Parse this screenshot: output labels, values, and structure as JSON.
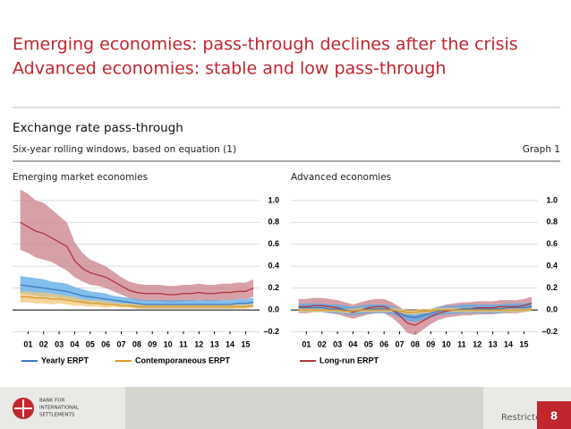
{
  "slide": {
    "title_lines": [
      "Emerging economies: pass-through declines after the crisis",
      "Advanced economies: stable and low pass-through"
    ]
  },
  "figure": {
    "title": "Exchange rate pass-through",
    "subtitle": "Six-year rolling windows, based on equation (1)",
    "label": "Graph 1"
  },
  "footer": {
    "logo_lines": [
      "BANK FOR",
      "INTERNATIONAL",
      "SETTLEMENTS"
    ],
    "classification": "Restricted",
    "page": "8"
  },
  "chart_data": [
    {
      "type": "line",
      "title": "Emerging market economies",
      "x": [
        0.5,
        1,
        1.5,
        2,
        2.5,
        3,
        3.5,
        4,
        4.5,
        5,
        5.5,
        6,
        6.5,
        7,
        7.5,
        8,
        8.5,
        9,
        9.5,
        10,
        10.5,
        11,
        11.5,
        12,
        12.5,
        13,
        13.5,
        14,
        14.5,
        15,
        15.5
      ],
      "xlim": [
        0,
        15.9
      ],
      "xticks": [
        {
          "value": 1,
          "label": "01"
        },
        {
          "value": 2,
          "label": "02"
        },
        {
          "value": 3,
          "label": "03"
        },
        {
          "value": 4,
          "label": "04"
        },
        {
          "value": 5,
          "label": "05"
        },
        {
          "value": 6,
          "label": "06"
        },
        {
          "value": 7,
          "label": "07"
        },
        {
          "value": 8,
          "label": "08"
        },
        {
          "value": 9,
          "label": "09"
        },
        {
          "value": 10,
          "label": "10"
        },
        {
          "value": 11,
          "label": "11"
        },
        {
          "value": 12,
          "label": "12"
        },
        {
          "value": 13,
          "label": "13"
        },
        {
          "value": 14,
          "label": "14"
        },
        {
          "value": 15,
          "label": "15"
        }
      ],
      "ylim": [
        -0.22,
        1.13
      ],
      "yticks": [
        {
          "value": -0.2,
          "label": "–0.2"
        },
        {
          "value": 0,
          "label": "0.0"
        },
        {
          "value": 0.2,
          "label": "0.2"
        },
        {
          "value": 0.4,
          "label": "0.4"
        },
        {
          "value": 0.6,
          "label": "0.6"
        },
        {
          "value": 0.8,
          "label": "0.8"
        },
        {
          "value": 1,
          "label": "1.0"
        }
      ],
      "grid": true,
      "series": [
        {
          "color": "#b5323f",
          "band_color": "#c98089",
          "values": [
            0.8,
            0.76,
            0.72,
            0.7,
            0.66,
            0.62,
            0.58,
            0.45,
            0.38,
            0.34,
            0.32,
            0.3,
            0.26,
            0.22,
            0.18,
            0.16,
            0.15,
            0.15,
            0.15,
            0.14,
            0.14,
            0.15,
            0.15,
            0.16,
            0.15,
            0.15,
            0.16,
            0.16,
            0.17,
            0.17,
            0.2
          ],
          "upper": [
            1.1,
            1.06,
            1.0,
            0.98,
            0.92,
            0.86,
            0.8,
            0.62,
            0.52,
            0.46,
            0.43,
            0.4,
            0.35,
            0.3,
            0.26,
            0.24,
            0.23,
            0.23,
            0.23,
            0.22,
            0.22,
            0.23,
            0.23,
            0.24,
            0.23,
            0.23,
            0.24,
            0.24,
            0.25,
            0.25,
            0.28
          ],
          "lower": [
            0.55,
            0.52,
            0.48,
            0.46,
            0.44,
            0.4,
            0.36,
            0.3,
            0.26,
            0.23,
            0.22,
            0.2,
            0.17,
            0.14,
            0.11,
            0.09,
            0.08,
            0.08,
            0.08,
            0.07,
            0.07,
            0.08,
            0.08,
            0.09,
            0.08,
            0.08,
            0.09,
            0.09,
            0.1,
            0.1,
            0.12
          ]
        },
        {
          "name": "Yearly ERPT",
          "color": "#3f78bf",
          "band_color": "#5aaae6",
          "values": [
            0.23,
            0.22,
            0.21,
            0.2,
            0.19,
            0.18,
            0.17,
            0.15,
            0.13,
            0.12,
            0.11,
            0.1,
            0.09,
            0.08,
            0.07,
            0.06,
            0.05,
            0.05,
            0.05,
            0.05,
            0.05,
            0.05,
            0.05,
            0.05,
            0.05,
            0.05,
            0.05,
            0.05,
            0.06,
            0.06,
            0.07
          ],
          "upper": [
            0.31,
            0.3,
            0.29,
            0.28,
            0.26,
            0.25,
            0.24,
            0.21,
            0.19,
            0.17,
            0.16,
            0.15,
            0.13,
            0.12,
            0.11,
            0.1,
            0.09,
            0.09,
            0.09,
            0.09,
            0.09,
            0.09,
            0.09,
            0.09,
            0.09,
            0.09,
            0.09,
            0.09,
            0.1,
            0.1,
            0.11
          ],
          "lower": [
            0.15,
            0.14,
            0.13,
            0.12,
            0.12,
            0.11,
            0.1,
            0.09,
            0.07,
            0.07,
            0.06,
            0.05,
            0.05,
            0.04,
            0.03,
            0.02,
            0.01,
            0.01,
            0.01,
            0.01,
            0.01,
            0.01,
            0.01,
            0.01,
            0.01,
            0.01,
            0.01,
            0.01,
            0.02,
            0.02,
            0.03
          ]
        },
        {
          "name": "Contemporaneous ERPT",
          "color": "#d99a2b",
          "band_color": "#f2c77a",
          "values": [
            0.12,
            0.12,
            0.11,
            0.11,
            0.1,
            0.1,
            0.09,
            0.08,
            0.07,
            0.06,
            0.06,
            0.05,
            0.05,
            0.04,
            0.04,
            0.03,
            0.03,
            0.03,
            0.03,
            0.03,
            0.03,
            0.03,
            0.03,
            0.03,
            0.03,
            0.03,
            0.03,
            0.03,
            0.03,
            0.03,
            0.04
          ],
          "upper": [
            0.17,
            0.17,
            0.16,
            0.16,
            0.15,
            0.14,
            0.13,
            0.12,
            0.1,
            0.09,
            0.09,
            0.08,
            0.07,
            0.06,
            0.06,
            0.05,
            0.05,
            0.05,
            0.05,
            0.05,
            0.05,
            0.05,
            0.05,
            0.05,
            0.05,
            0.05,
            0.05,
            0.05,
            0.05,
            0.05,
            0.06
          ],
          "lower": [
            0.07,
            0.07,
            0.06,
            0.06,
            0.05,
            0.06,
            0.05,
            0.04,
            0.04,
            0.03,
            0.03,
            0.02,
            0.03,
            0.02,
            0.02,
            0.01,
            0.01,
            0.01,
            0.01,
            0.01,
            0.01,
            0.01,
            0.01,
            0.01,
            0.01,
            0.01,
            0.01,
            0.01,
            0.01,
            0.01,
            0.02
          ]
        }
      ]
    },
    {
      "type": "line",
      "title": "Advanced economies",
      "x": [
        0.5,
        1,
        1.5,
        2,
        2.5,
        3,
        3.5,
        4,
        4.5,
        5,
        5.5,
        6,
        6.5,
        7,
        7.5,
        8,
        8.5,
        9,
        9.5,
        10,
        10.5,
        11,
        11.5,
        12,
        12.5,
        13,
        13.5,
        14,
        14.5,
        15,
        15.5
      ],
      "xlim": [
        0,
        15.9
      ],
      "xticks": [
        {
          "value": 1,
          "label": "01"
        },
        {
          "value": 2,
          "label": "02"
        },
        {
          "value": 3,
          "label": "03"
        },
        {
          "value": 4,
          "label": "04"
        },
        {
          "value": 5,
          "label": "05"
        },
        {
          "value": 6,
          "label": "06"
        },
        {
          "value": 7,
          "label": "07"
        },
        {
          "value": 8,
          "label": "08"
        },
        {
          "value": 9,
          "label": "09"
        },
        {
          "value": 10,
          "label": "10"
        },
        {
          "value": 11,
          "label": "11"
        },
        {
          "value": 12,
          "label": "12"
        },
        {
          "value": 13,
          "label": "13"
        },
        {
          "value": 14,
          "label": "14"
        },
        {
          "value": 15,
          "label": "15"
        }
      ],
      "ylim": [
        -0.22,
        1.13
      ],
      "yticks": [
        {
          "value": -0.2,
          "label": "–0.2"
        },
        {
          "value": 0,
          "label": "0.0"
        },
        {
          "value": 0.2,
          "label": "0.2"
        },
        {
          "value": 0.4,
          "label": "0.4"
        },
        {
          "value": 0.6,
          "label": "0.6"
        },
        {
          "value": 0.8,
          "label": "0.8"
        },
        {
          "value": 1,
          "label": "1.0"
        }
      ],
      "grid": true,
      "series": [
        {
          "name": "Long-run ERPT",
          "color": "#b5323f",
          "band_color": "#c98089",
          "values": [
            0.03,
            0.03,
            0.04,
            0.04,
            0.03,
            0.02,
            0.0,
            -0.02,
            0.0,
            0.02,
            0.03,
            0.03,
            0.0,
            -0.05,
            -0.12,
            -0.14,
            -0.1,
            -0.06,
            -0.03,
            -0.01,
            0.0,
            0.01,
            0.01,
            0.02,
            0.02,
            0.02,
            0.03,
            0.03,
            0.03,
            0.04,
            0.06
          ],
          "upper": [
            0.1,
            0.1,
            0.11,
            0.11,
            0.1,
            0.09,
            0.07,
            0.05,
            0.07,
            0.09,
            0.1,
            0.1,
            0.07,
            0.03,
            -0.03,
            -0.05,
            -0.02,
            0.01,
            0.03,
            0.05,
            0.06,
            0.07,
            0.07,
            0.08,
            0.08,
            0.08,
            0.09,
            0.09,
            0.09,
            0.1,
            0.12
          ],
          "lower": [
            -0.03,
            -0.03,
            -0.02,
            -0.02,
            -0.03,
            -0.04,
            -0.06,
            -0.08,
            -0.06,
            -0.04,
            -0.03,
            -0.03,
            -0.07,
            -0.13,
            -0.21,
            -0.23,
            -0.18,
            -0.13,
            -0.09,
            -0.07,
            -0.06,
            -0.05,
            -0.05,
            -0.04,
            -0.04,
            -0.04,
            -0.03,
            -0.03,
            -0.03,
            -0.02,
            0.0
          ]
        },
        {
          "color": "#3f78bf",
          "band_color": "#5aaae6",
          "values": [
            0.02,
            0.02,
            0.02,
            0.02,
            0.01,
            0.01,
            0.0,
            -0.01,
            0.0,
            0.01,
            0.01,
            0.01,
            0.0,
            -0.03,
            -0.06,
            -0.07,
            -0.05,
            -0.03,
            -0.01,
            0.0,
            0.0,
            0.01,
            0.01,
            0.01,
            0.01,
            0.01,
            0.01,
            0.02,
            0.02,
            0.02,
            0.03
          ],
          "upper": [
            0.06,
            0.06,
            0.06,
            0.06,
            0.05,
            0.05,
            0.04,
            0.03,
            0.04,
            0.05,
            0.05,
            0.05,
            0.04,
            0.01,
            -0.02,
            -0.03,
            -0.01,
            0.01,
            0.03,
            0.04,
            0.04,
            0.05,
            0.05,
            0.05,
            0.05,
            0.05,
            0.05,
            0.06,
            0.06,
            0.06,
            0.07
          ],
          "lower": [
            -0.02,
            -0.02,
            -0.02,
            -0.02,
            -0.03,
            -0.03,
            -0.04,
            -0.05,
            -0.04,
            -0.03,
            -0.03,
            -0.03,
            -0.04,
            -0.07,
            -0.1,
            -0.11,
            -0.09,
            -0.07,
            -0.05,
            -0.04,
            -0.04,
            -0.03,
            -0.03,
            -0.03,
            -0.03,
            -0.03,
            -0.03,
            -0.02,
            -0.02,
            -0.02,
            -0.01
          ]
        },
        {
          "color": "#d99a2b",
          "band_color": "#f2c77a",
          "values": [
            0.0,
            0.0,
            0.0,
            0.0,
            0.0,
            0.0,
            -0.01,
            -0.01,
            0.0,
            0.0,
            0.0,
            0.0,
            0.0,
            -0.01,
            -0.02,
            -0.02,
            -0.01,
            -0.01,
            0.0,
            0.0,
            0.0,
            0.0,
            0.0,
            0.0,
            0.0,
            0.0,
            0.0,
            0.0,
            0.0,
            0.0,
            0.01
          ],
          "upper": [
            0.02,
            0.02,
            0.02,
            0.02,
            0.02,
            0.02,
            0.01,
            0.01,
            0.02,
            0.02,
            0.02,
            0.02,
            0.02,
            0.01,
            0.0,
            0.0,
            0.01,
            0.01,
            0.02,
            0.02,
            0.02,
            0.02,
            0.02,
            0.02,
            0.02,
            0.02,
            0.02,
            0.02,
            0.02,
            0.02,
            0.03
          ],
          "lower": [
            -0.02,
            -0.02,
            -0.02,
            -0.02,
            -0.02,
            -0.02,
            -0.03,
            -0.03,
            -0.02,
            -0.02,
            -0.02,
            -0.02,
            -0.02,
            -0.03,
            -0.04,
            -0.04,
            -0.03,
            -0.03,
            -0.02,
            -0.02,
            -0.02,
            -0.02,
            -0.02,
            -0.02,
            -0.02,
            -0.02,
            -0.02,
            -0.02,
            -0.02,
            -0.02,
            -0.01
          ]
        }
      ]
    }
  ]
}
